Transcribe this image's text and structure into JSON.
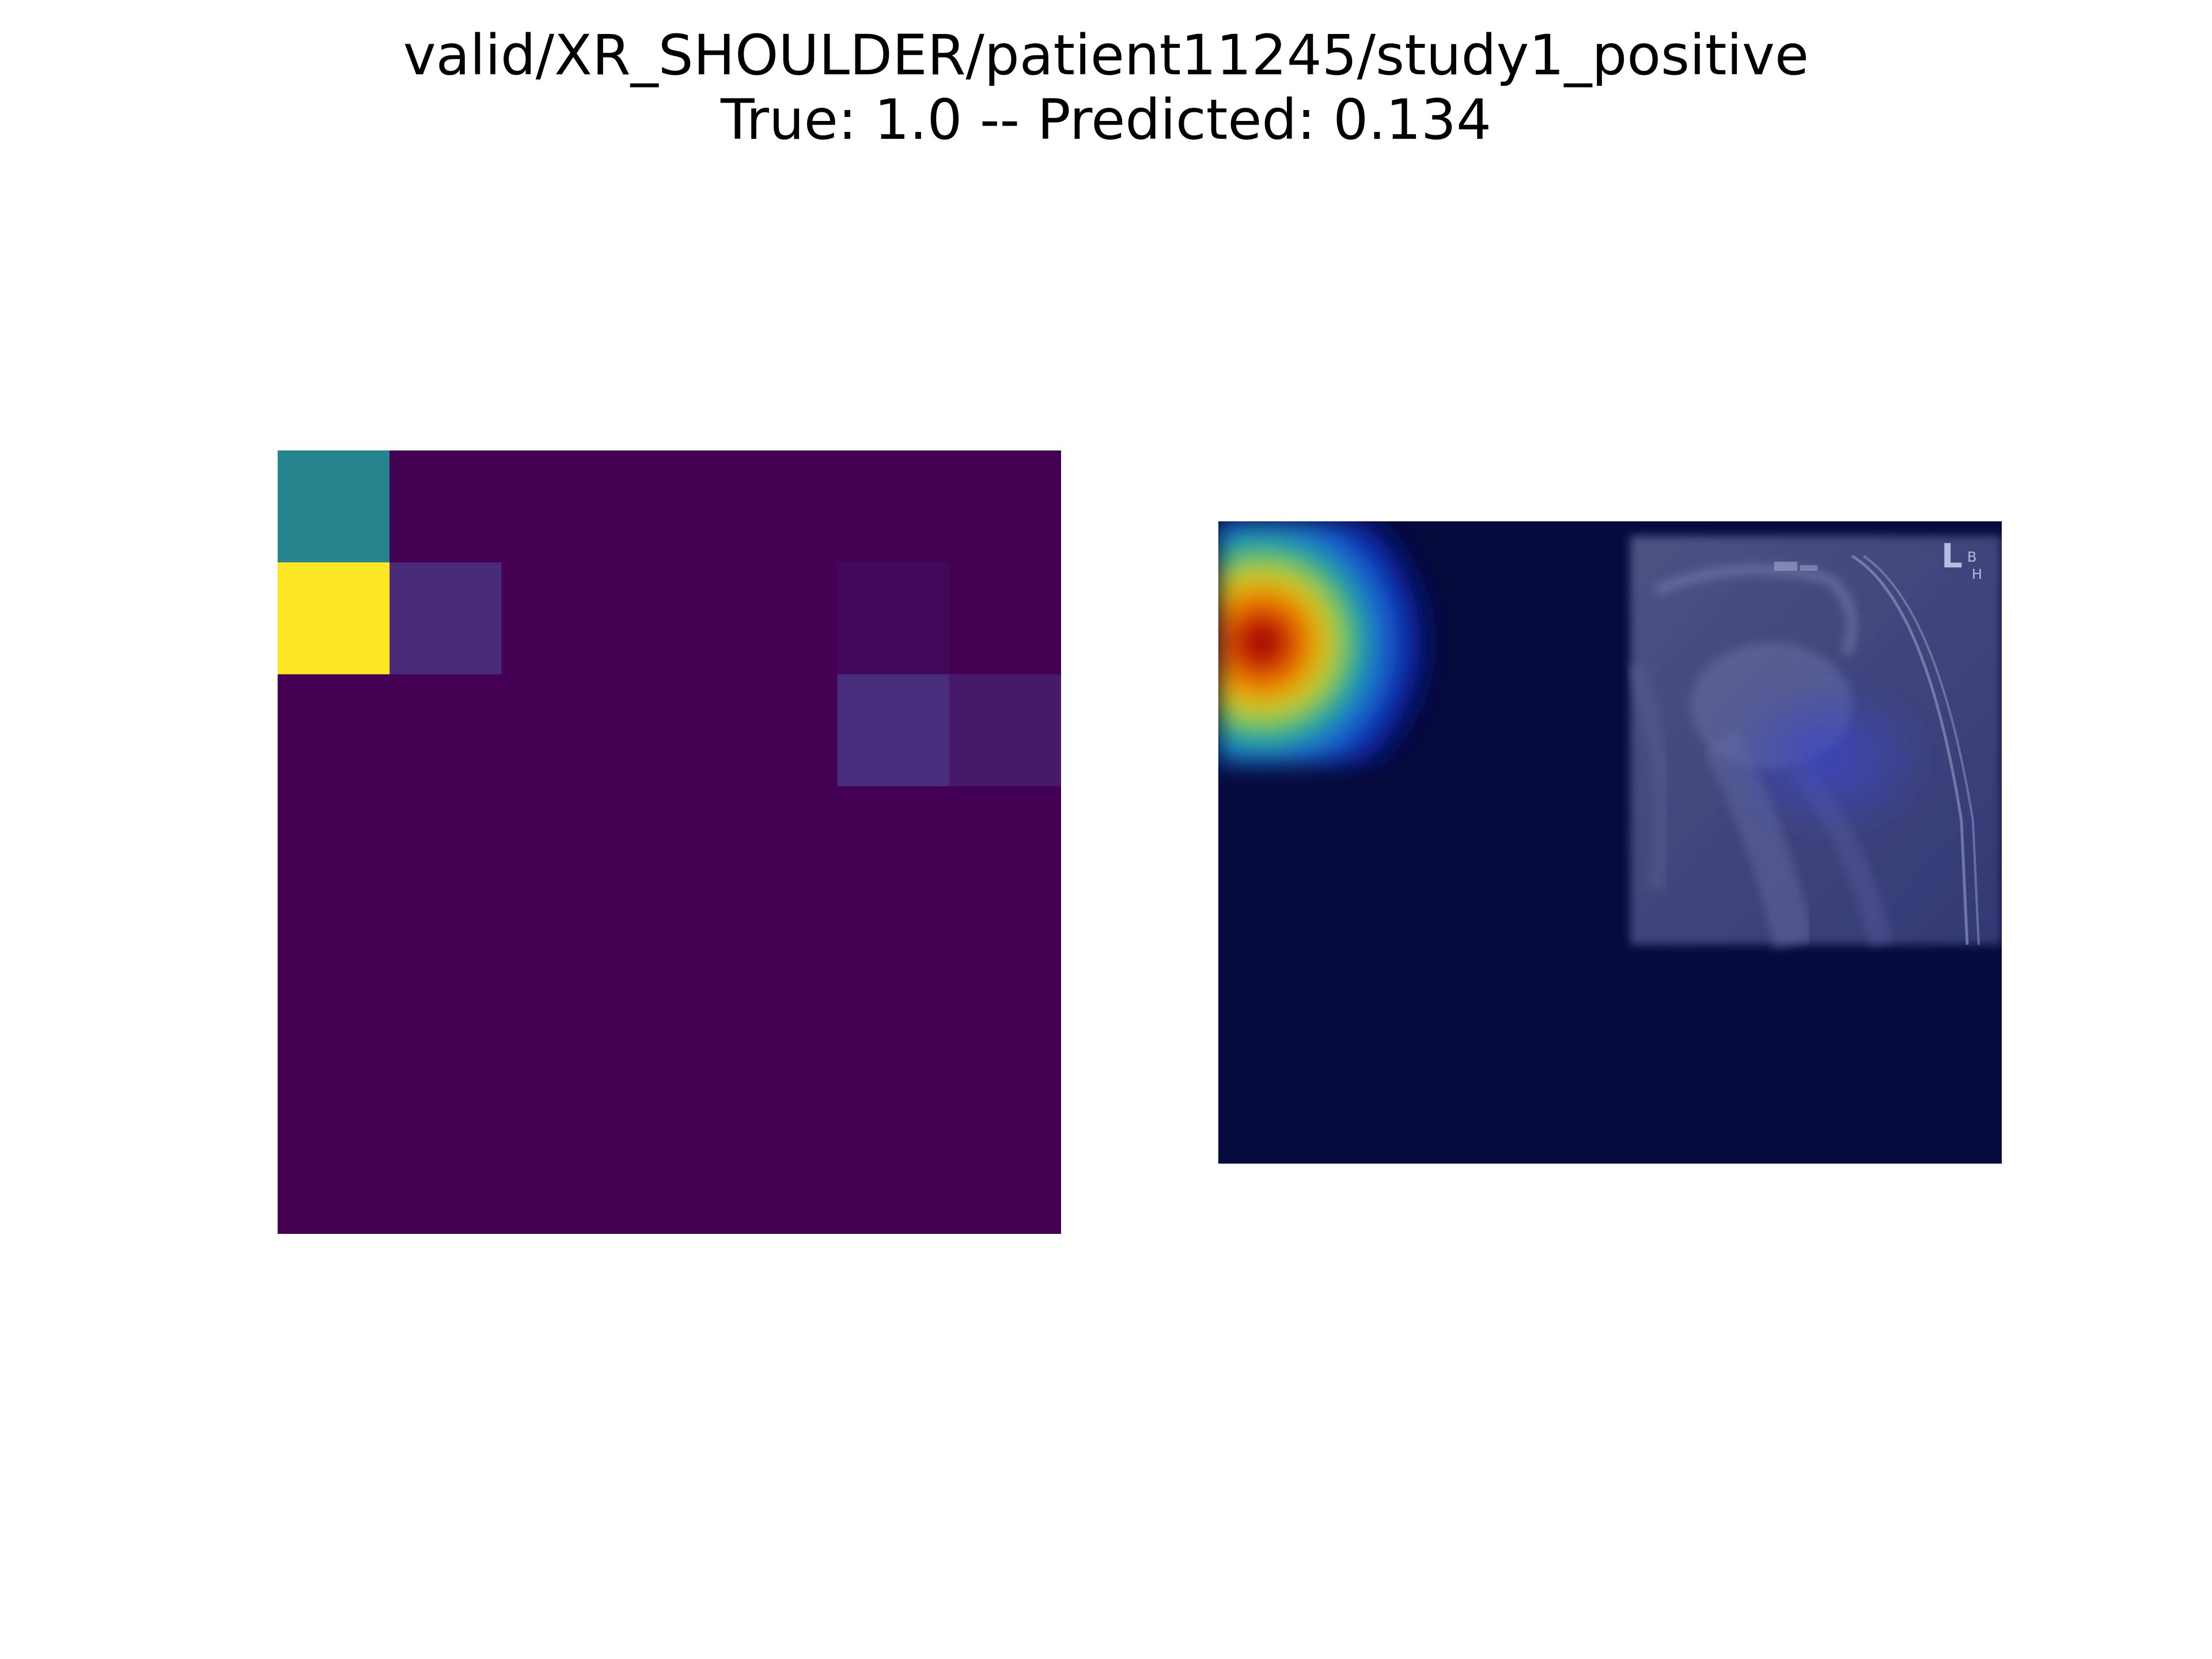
{
  "figure": {
    "title_line1": "valid/XR_SHOULDER/patient11245/study1_positive",
    "title_line2": "True: 1.0 -- Predicted: 0.134"
  },
  "colors": {
    "background": "#ffffff",
    "viridis_low": "#440154",
    "viridis_mid_low": "#46327e",
    "viridis_mid": "#2a788e",
    "viridis_high": "#fde725",
    "overlay_base": "#070a3c"
  },
  "chart_data": [
    {
      "type": "heatmap",
      "title": "",
      "colormap": "viridis",
      "axes_visible": false,
      "grid": false,
      "rows": 7,
      "cols": 7,
      "values": [
        [
          0.45,
          0.0,
          0.0,
          0.0,
          0.0,
          0.0,
          0.0
        ],
        [
          1.0,
          0.12,
          0.0,
          0.0,
          0.0,
          0.02,
          0.0
        ],
        [
          0.0,
          0.0,
          0.0,
          0.0,
          0.0,
          0.13,
          0.07
        ],
        [
          0.0,
          0.0,
          0.0,
          0.0,
          0.0,
          0.0,
          0.0
        ],
        [
          0.0,
          0.0,
          0.0,
          0.0,
          0.0,
          0.0,
          0.0
        ],
        [
          0.0,
          0.0,
          0.0,
          0.0,
          0.0,
          0.0,
          0.0
        ],
        [
          0.0,
          0.0,
          0.0,
          0.0,
          0.0,
          0.0,
          0.0
        ]
      ]
    },
    {
      "type": "heatmap",
      "title": "",
      "colormap": "jet overlay on shoulder radiograph",
      "axes_visible": false,
      "grid": false,
      "hotspot": "left edge, upper region",
      "radiograph_marker": "L"
    }
  ]
}
